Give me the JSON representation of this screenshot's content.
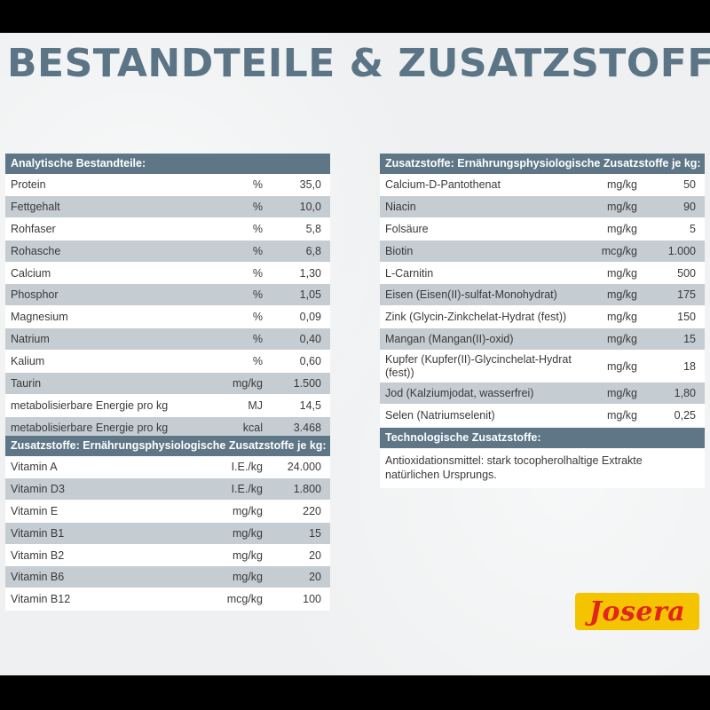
{
  "title": "BESTANDTEILE & ZUSATZSTOFFE",
  "analytisch": {
    "header": "Analytische Bestandteile:",
    "rows": [
      {
        "name": "Protein",
        "unit": "%",
        "value": "35,0"
      },
      {
        "name": "Fettgehalt",
        "unit": "%",
        "value": "10,0"
      },
      {
        "name": "Rohfaser",
        "unit": "%",
        "value": "5,8"
      },
      {
        "name": "Rohasche",
        "unit": "%",
        "value": "6,8"
      },
      {
        "name": "Calcium",
        "unit": "%",
        "value": "1,30"
      },
      {
        "name": "Phosphor",
        "unit": "%",
        "value": "1,05"
      },
      {
        "name": "Magnesium",
        "unit": "%",
        "value": "0,09"
      },
      {
        "name": "Natrium",
        "unit": "%",
        "value": "0,40"
      },
      {
        "name": "Kalium",
        "unit": "%",
        "value": "0,60"
      },
      {
        "name": "Taurin",
        "unit": "mg/kg",
        "value": "1.500"
      },
      {
        "name": "metabolisierbare Energie pro kg",
        "unit": "MJ",
        "value": "14,5"
      },
      {
        "name": "metabolisierbare Energie pro kg",
        "unit": "kcal",
        "value": "3.468"
      }
    ]
  },
  "vitamine": {
    "header": "Zusatzstoffe: Ernährungsphysiologische Zusatzstoffe je kg:",
    "rows": [
      {
        "name": "Vitamin A",
        "unit": "I.E./kg",
        "value": "24.000"
      },
      {
        "name": "Vitamin D3",
        "unit": "I.E./kg",
        "value": "1.800"
      },
      {
        "name": "Vitamin E",
        "unit": "mg/kg",
        "value": "220"
      },
      {
        "name": "Vitamin B1",
        "unit": "mg/kg",
        "value": "15"
      },
      {
        "name": "Vitamin B2",
        "unit": "mg/kg",
        "value": "20"
      },
      {
        "name": "Vitamin B6",
        "unit": "mg/kg",
        "value": "20"
      },
      {
        "name": "Vitamin B12",
        "unit": "mcg/kg",
        "value": "100"
      }
    ]
  },
  "spurenelemente": {
    "header": "Zusatzstoffe: Ernährungsphysiologische Zusatzstoffe je kg:",
    "rows": [
      {
        "name": "Calcium-D-Pantothenat",
        "unit": "mg/kg",
        "value": "50"
      },
      {
        "name": "Niacin",
        "unit": "mg/kg",
        "value": "90"
      },
      {
        "name": "Folsäure",
        "unit": "mg/kg",
        "value": "5"
      },
      {
        "name": "Biotin",
        "unit": "mcg/kg",
        "value": "1.000"
      },
      {
        "name": "L-Carnitin",
        "unit": "mg/kg",
        "value": "500"
      },
      {
        "name": "Eisen (Eisen(II)-sulfat-Monohydrat)",
        "unit": "mg/kg",
        "value": "175"
      },
      {
        "name": "Zink (Glycin-Zinkchelat-Hydrat (fest))",
        "unit": "mg/kg",
        "value": "150"
      },
      {
        "name": "Mangan (Mangan(II)-oxid)",
        "unit": "mg/kg",
        "value": "15"
      },
      {
        "name": "Kupfer (Kupfer(II)-Glycinchelat-Hydrat (fest))",
        "unit": "mg/kg",
        "value": "18",
        "tall": true
      },
      {
        "name": "Jod (Kalziumjodat, wasserfrei)",
        "unit": "mg/kg",
        "value": "1,80"
      },
      {
        "name": "Selen (Natriumselenit)",
        "unit": "mg/kg",
        "value": "0,25"
      }
    ]
  },
  "technologisch": {
    "header": "Technologische Zusatzstoffe:",
    "text": "Antioxidationsmittel: stark tocopherolhaltige Extrakte natürlichen Ursprungs."
  },
  "logo": {
    "text": "Josera",
    "colors": {
      "background": "#f4c400",
      "text": "#e2251d"
    }
  },
  "colors": {
    "header": "#5e7686",
    "row_alt": "#c5ccd2",
    "title": "#5b7586"
  }
}
